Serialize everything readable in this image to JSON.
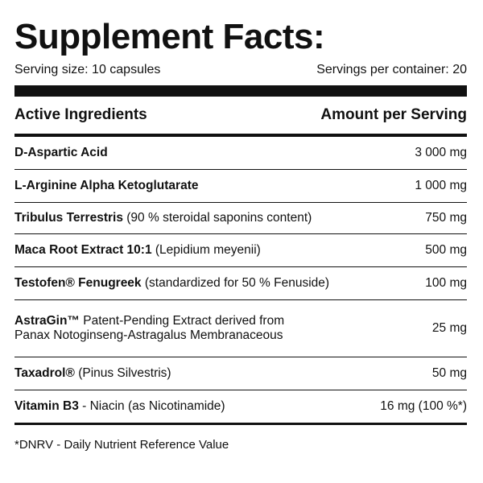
{
  "header": {
    "title": "Supplement Facts:",
    "serving_size": "Serving size: 10 capsules",
    "servings_per_container": "Servings per container: 20"
  },
  "table": {
    "columns": [
      "Active Ingredients",
      "Amount per Serving"
    ],
    "rows": [
      {
        "name": "D-Aspartic Acid",
        "detail": [],
        "amount": "3 000 mg"
      },
      {
        "name": "L-Arginine Alpha Ketoglutarate",
        "detail": [],
        "amount": "1 000 mg"
      },
      {
        "name": "Tribulus Terrestris",
        "detail": [
          "(90 % steroidal saponins content)"
        ],
        "amount": "750 mg"
      },
      {
        "name": "Maca Root Extract 10:1",
        "detail": [
          "(Lepidium meyenii)"
        ],
        "amount": "500 mg"
      },
      {
        "name": "Testofen® Fenugreek",
        "detail": [
          "(standardized for 50 % Fenuside)"
        ],
        "amount": "100 mg"
      },
      {
        "name": "AstraGin™",
        "detail": [
          "Patent-Pending Extract derived from",
          "Panax Notoginseng-Astragalus Membranaceous"
        ],
        "amount": "25 mg"
      },
      {
        "name": "Taxadrol®",
        "detail": [
          "(Pinus Silvestris)"
        ],
        "amount": "50 mg"
      },
      {
        "name": "Vitamin B3",
        "detail": [
          "- Niacin (as Nicotinamide)"
        ],
        "amount": "16 mg (100 %*)"
      }
    ]
  },
  "footnote": "*DNRV - Daily Nutrient Reference Value"
}
